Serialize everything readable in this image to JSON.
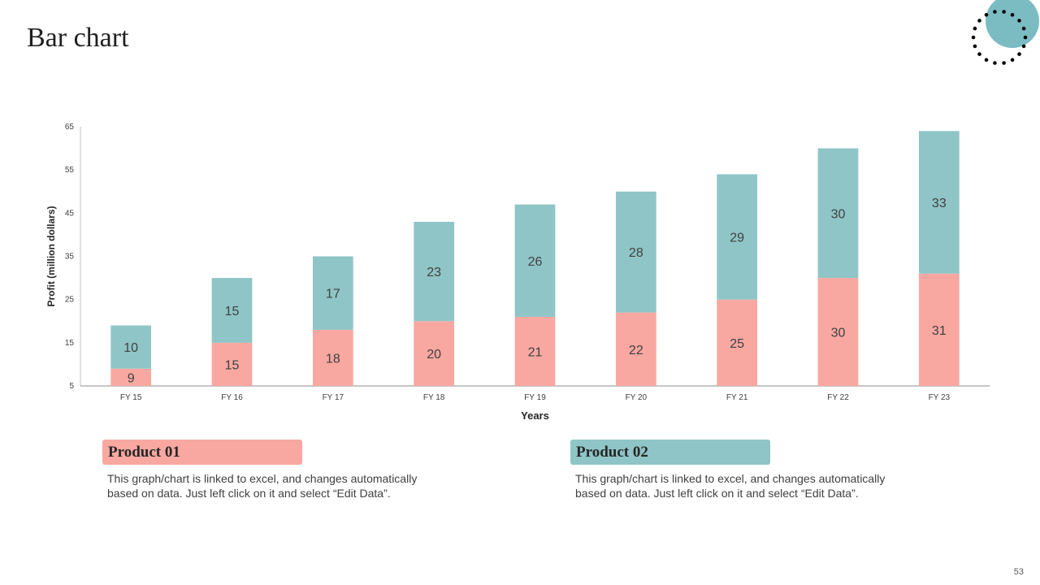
{
  "slide": {
    "title": "Bar chart",
    "page_number": "53"
  },
  "legend": [
    {
      "name": "Product 01",
      "color": "#f8a8a1",
      "description": "This graph/chart is linked to excel, and changes automatically based on data. Just left click on it and select “Edit Data”."
    },
    {
      "name": "Product 02",
      "color": "#8fc5c7",
      "description": "This graph/chart is linked to excel, and changes automatically based on data. Just left click on it and select “Edit Data”."
    }
  ],
  "decoration": {
    "circle_color": "#7bbcc2",
    "dot_color": "#000000",
    "icon": "dotted-circle-decoration"
  },
  "chart_data": {
    "type": "bar",
    "stacked": true,
    "categories": [
      "FY 15",
      "FY 16",
      "FY 17",
      "FY 18",
      "FY 19",
      "FY 20",
      "FY 21",
      "FY 22",
      "FY 23"
    ],
    "series": [
      {
        "name": "Product 01",
        "color": "#f8a8a1",
        "values": [
          9,
          15,
          18,
          20,
          21,
          22,
          25,
          30,
          31
        ]
      },
      {
        "name": "Product 02",
        "color": "#8fc5c7",
        "values": [
          10,
          15,
          17,
          23,
          26,
          28,
          29,
          30,
          33
        ]
      }
    ],
    "xlabel": "Years",
    "ylabel": "Profit  (million dollars)",
    "ylim": [
      5,
      65
    ],
    "yticks": [
      5,
      15,
      25,
      35,
      45,
      55,
      65
    ],
    "grid": false,
    "data_labels": true
  }
}
